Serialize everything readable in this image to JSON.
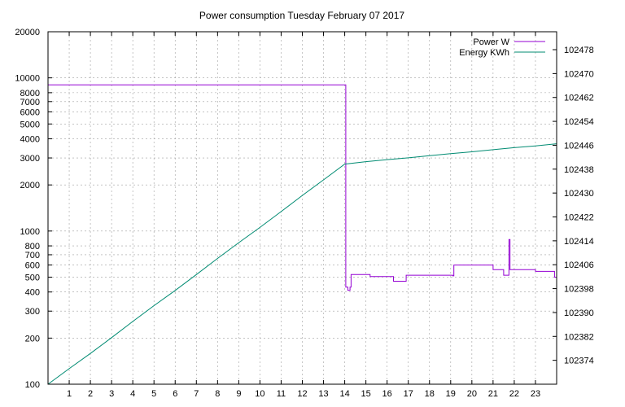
{
  "chart_data": {
    "type": "line",
    "title": "Power consumption Tuesday February 07 2017",
    "xlim": [
      0,
      24
    ],
    "x_ticks": [
      1,
      2,
      3,
      4,
      5,
      6,
      7,
      8,
      9,
      10,
      11,
      12,
      13,
      14,
      15,
      16,
      17,
      18,
      19,
      20,
      21,
      22,
      23
    ],
    "y_left": {
      "scale": "log",
      "range": [
        100,
        20000
      ],
      "ticks": [
        100,
        200,
        300,
        400,
        500,
        600,
        700,
        800,
        1000,
        2000,
        3000,
        4000,
        5000,
        6000,
        7000,
        8000,
        10000,
        20000
      ]
    },
    "y_right": {
      "scale": "linear",
      "range": [
        102366,
        102484
      ],
      "ticks": [
        102374,
        102382,
        102390,
        102398,
        102406,
        102414,
        102422,
        102430,
        102438,
        102446,
        102454,
        102462,
        102470,
        102478
      ]
    },
    "grid": true,
    "legend_position": "top-right",
    "series": [
      {
        "name": "Power W",
        "axis": "left",
        "color": "#9400d3",
        "style": "steps",
        "x": [
          0,
          14.0,
          14.05,
          14.15,
          14.25,
          14.3,
          15.1,
          15.2,
          16.2,
          16.3,
          16.85,
          16.9,
          18.0,
          19.1,
          19.15,
          20.0,
          21.0,
          21.5,
          21.75,
          21.8,
          21.9,
          22.0,
          23.0,
          23.9,
          24.0
        ],
        "values": [
          9000,
          9000,
          430,
          410,
          430,
          520,
          520,
          505,
          505,
          470,
          470,
          515,
          515,
          510,
          600,
          600,
          560,
          515,
          880,
          560,
          560,
          560,
          545,
          500,
          650
        ]
      },
      {
        "name": "Energy KWh",
        "axis": "right",
        "color": "#008b72",
        "style": "line",
        "x": [
          0,
          1,
          2,
          3,
          4,
          5,
          6,
          7,
          8,
          9,
          10,
          11,
          12,
          13,
          14,
          15,
          16,
          17,
          18,
          19,
          20,
          21,
          22,
          23,
          24
        ],
        "values": [
          102366.0,
          102371.2,
          102376.3,
          102381.6,
          102387.0,
          102392.3,
          102397.4,
          102402.7,
          102408.1,
          102413.4,
          102418.5,
          102423.8,
          102429.2,
          102434.4,
          102439.7,
          102440.5,
          102441.2,
          102441.8,
          102442.5,
          102443.2,
          102443.8,
          102444.5,
          102445.2,
          102445.8,
          102446.5
        ]
      }
    ]
  }
}
